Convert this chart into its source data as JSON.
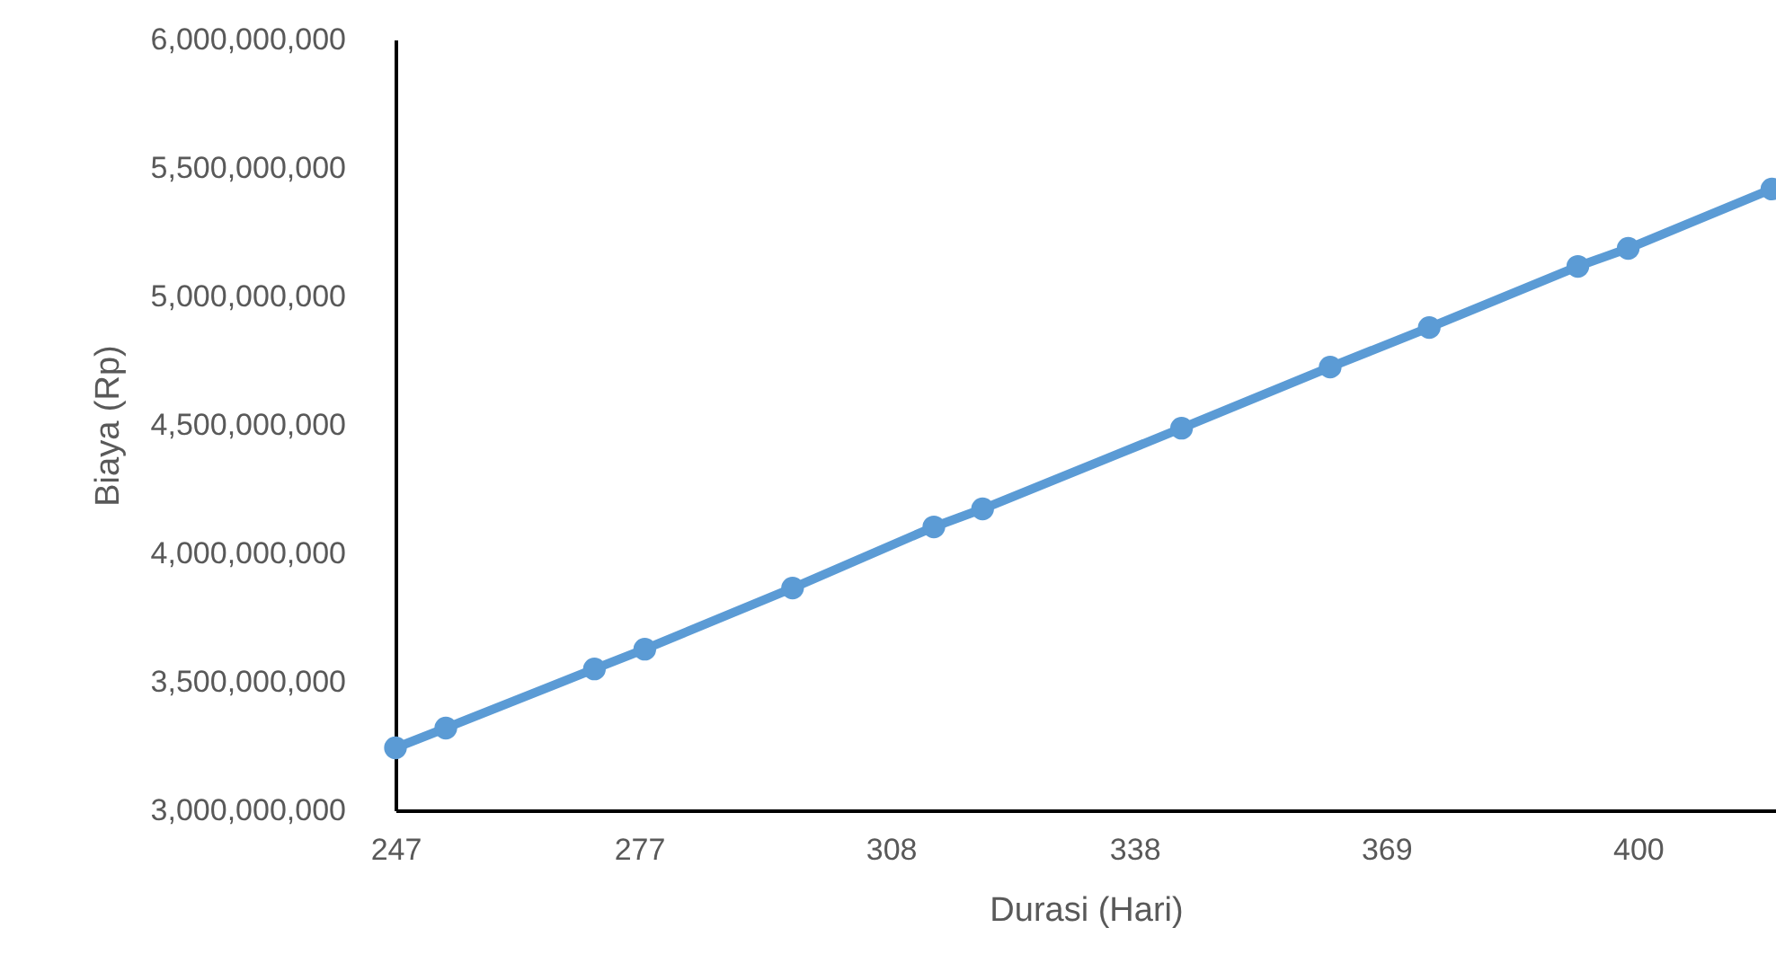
{
  "chart_data": {
    "type": "line",
    "xlabel": "Durasi (Hari)",
    "ylabel": "Biaya (Rp)",
    "x": [
      247,
      253.2,
      271.5,
      277.7,
      295.9,
      313.3,
      319.3,
      343.8,
      362.1,
      374.3,
      392.6,
      398.8,
      416.5
    ],
    "series": [
      {
        "color": "#5b9bd5",
        "values": [
          3243000000,
          3320000000,
          3550000000,
          3627000000,
          3865000000,
          4103000000,
          4173000000,
          4487000000,
          4725000000,
          4879000000,
          5117000000,
          5187000000,
          5418000000
        ]
      }
    ],
    "xlim": [
      247,
      417
    ],
    "xticks": [
      247,
      277,
      308,
      338,
      369,
      400
    ],
    "ylim": [
      3000000000,
      6000000000
    ],
    "yticks": [
      {
        "value": 3000000000,
        "label": "3,000,000,000"
      },
      {
        "value": 3500000000,
        "label": "3,500,000,000"
      },
      {
        "value": 4000000000,
        "label": "4,000,000,000"
      },
      {
        "value": 4500000000,
        "label": "4,500,000,000"
      },
      {
        "value": 5000000000,
        "label": "5,000,000,000"
      },
      {
        "value": 5500000000,
        "label": "5,500,000,000"
      },
      {
        "value": 6000000000,
        "label": "6,000,000,000"
      }
    ],
    "grid": false,
    "marker": "circle",
    "line_style": "solid"
  }
}
